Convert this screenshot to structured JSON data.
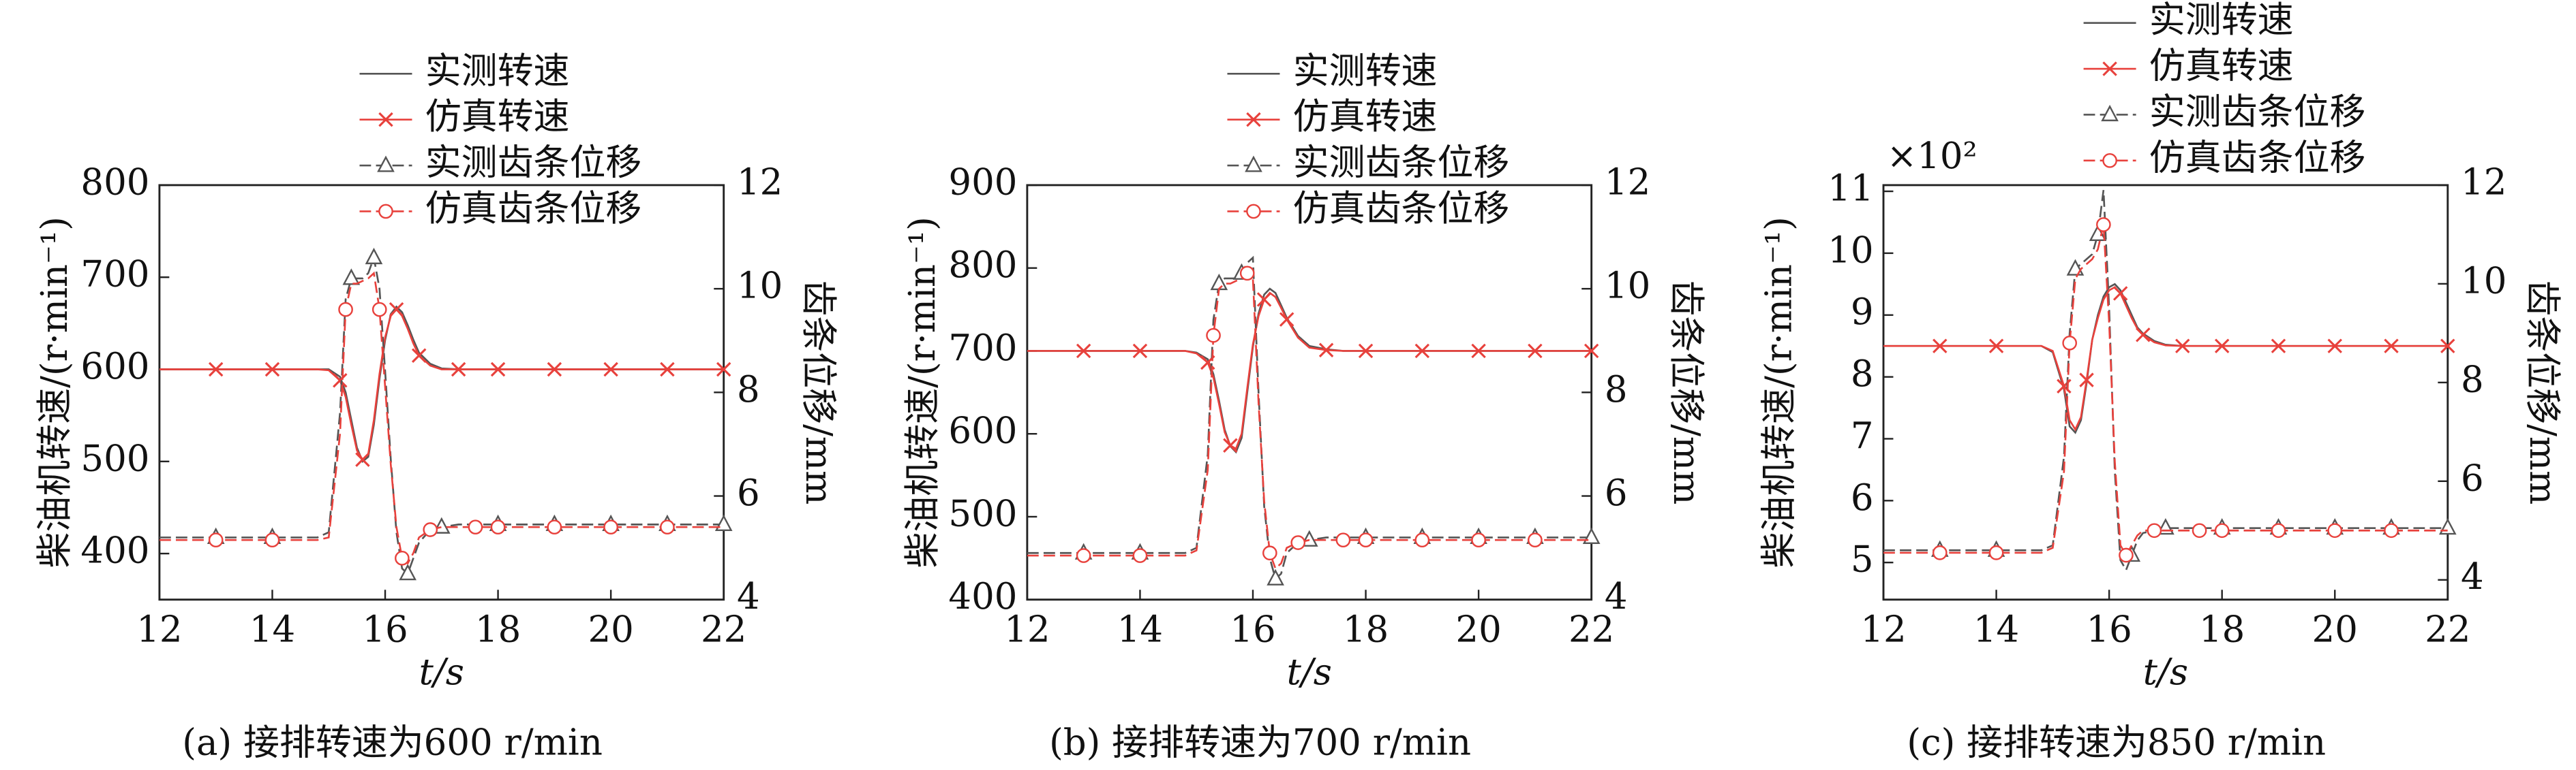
{
  "chart_data": [
    {
      "type": "line",
      "title": "(a) 接排转速为600 r/min",
      "xlabel": "t/s",
      "ylabel": "柴油机转速/(r·min⁻¹)",
      "y2label": "齿条位移/mm",
      "x": [
        12,
        13,
        14,
        14.8,
        15,
        15.2,
        15.3,
        15.4,
        15.5,
        15.6,
        15.7,
        15.8,
        15.9,
        16,
        16.1,
        16.2,
        16.3,
        16.4,
        16.5,
        16.6,
        16.8,
        17,
        17.3,
        17.6,
        18,
        19,
        20,
        21,
        22
      ],
      "xlim": [
        12,
        22
      ],
      "xticks": [
        12,
        14,
        16,
        18,
        20,
        22
      ],
      "ylim": [
        350,
        800
      ],
      "yticks": [
        400,
        500,
        600,
        700,
        800
      ],
      "y2lim": [
        4,
        12
      ],
      "y2ticks": [
        4,
        6,
        8,
        10,
        12
      ],
      "series": [
        {
          "name": "实测转速",
          "color": "#555555",
          "line_style": "solid",
          "marker": "none",
          "values": [
            600,
            600,
            600,
            600,
            600,
            592,
            575,
            545,
            515,
            500,
            505,
            540,
            590,
            632,
            660,
            668,
            662,
            648,
            632,
            618,
            606,
            601,
            600,
            600,
            600,
            600,
            600,
            600,
            600
          ]
        },
        {
          "name": "仿真转速",
          "color": "#e8413c",
          "line_style": "solid",
          "marker": "x",
          "values": [
            600,
            600,
            600,
            600,
            599,
            588,
            570,
            540,
            512,
            502,
            508,
            545,
            595,
            635,
            658,
            665,
            658,
            644,
            628,
            615,
            604,
            600,
            600,
            600,
            600,
            600,
            600,
            600,
            600
          ]
        },
        {
          "name": "实测齿条位移",
          "color": "#555555",
          "line_style": "dashed",
          "marker": "triangle",
          "axis": "y2",
          "values": [
            5.2,
            5.2,
            5.2,
            5.2,
            5.3,
            7.6,
            9.8,
            10.2,
            10.2,
            10.2,
            10.3,
            10.6,
            10.0,
            8.4,
            6.7,
            5.3,
            4.6,
            4.5,
            4.8,
            5.1,
            5.35,
            5.4,
            5.45,
            5.45,
            5.45,
            5.45,
            5.45,
            5.45,
            5.45
          ]
        },
        {
          "name": "仿真齿条位移",
          "color": "#e8413c",
          "line_style": "dashed",
          "marker": "circle",
          "axis": "y2",
          "values": [
            5.15,
            5.15,
            5.15,
            5.15,
            5.2,
            7.2,
            9.6,
            10.1,
            10.1,
            10.15,
            10.2,
            10.3,
            9.6,
            8.1,
            6.6,
            5.4,
            4.8,
            4.7,
            4.9,
            5.2,
            5.35,
            5.4,
            5.4,
            5.4,
            5.4,
            5.4,
            5.4,
            5.4,
            5.4
          ]
        }
      ]
    },
    {
      "type": "line",
      "title": "(b) 接排转速为700 r/min",
      "xlabel": "t/s",
      "ylabel": "柴油机转速/(r·min⁻¹)",
      "y2label": "齿条位移/mm",
      "x": [
        12,
        13,
        14,
        14.8,
        15,
        15.2,
        15.3,
        15.4,
        15.5,
        15.6,
        15.7,
        15.8,
        15.9,
        16,
        16.1,
        16.2,
        16.3,
        16.4,
        16.5,
        16.6,
        16.8,
        17,
        17.3,
        17.6,
        18,
        19,
        20,
        21,
        22
      ],
      "xlim": [
        12,
        22
      ],
      "xticks": [
        12,
        14,
        16,
        18,
        20,
        22
      ],
      "ylim": [
        400,
        900
      ],
      "yticks": [
        400,
        500,
        600,
        700,
        800,
        900
      ],
      "y2lim": [
        4,
        12
      ],
      "y2ticks": [
        4,
        6,
        8,
        10,
        12
      ],
      "series": [
        {
          "name": "实测转速",
          "color": "#555555",
          "line_style": "solid",
          "marker": "none",
          "values": [
            700,
            700,
            700,
            700,
            698,
            690,
            672,
            640,
            605,
            585,
            578,
            595,
            650,
            705,
            745,
            768,
            775,
            770,
            755,
            740,
            718,
            706,
            702,
            700,
            700,
            700,
            700,
            700,
            700
          ]
        },
        {
          "name": "仿真转速",
          "color": "#e8413c",
          "line_style": "solid",
          "marker": "x",
          "values": [
            700,
            700,
            700,
            700,
            697,
            686,
            668,
            636,
            602,
            586,
            582,
            600,
            655,
            708,
            742,
            762,
            770,
            765,
            752,
            738,
            716,
            704,
            701,
            700,
            700,
            700,
            700,
            700,
            700
          ]
        },
        {
          "name": "实测齿条位移",
          "color": "#555555",
          "line_style": "dashed",
          "marker": "triangle",
          "axis": "y2",
          "values": [
            4.9,
            4.9,
            4.9,
            4.9,
            5.0,
            6.8,
            9.4,
            10.1,
            10.2,
            10.2,
            10.2,
            10.3,
            10.5,
            10.6,
            8.0,
            5.8,
            4.8,
            4.4,
            4.5,
            4.9,
            5.1,
            5.15,
            5.2,
            5.2,
            5.2,
            5.2,
            5.2,
            5.2,
            5.2
          ]
        },
        {
          "name": "仿真齿条位移",
          "color": "#e8413c",
          "line_style": "dashed",
          "marker": "circle",
          "axis": "y2",
          "values": [
            4.85,
            4.85,
            4.85,
            4.85,
            4.95,
            6.5,
            9.1,
            10.0,
            10.1,
            10.1,
            10.15,
            10.2,
            10.3,
            10.2,
            7.8,
            5.9,
            4.9,
            4.6,
            4.7,
            5.0,
            5.1,
            5.15,
            5.15,
            5.15,
            5.15,
            5.15,
            5.15,
            5.15,
            5.15
          ]
        }
      ]
    },
    {
      "type": "line",
      "title": "(c) 接排转速为850 r/min",
      "xlabel": "t/s",
      "ylabel": "柴油机转速/(r·min⁻¹)",
      "y2label": "齿条位移/mm",
      "y_multiplier": "×10²",
      "x": [
        12,
        13,
        14,
        14.8,
        15,
        15.2,
        15.3,
        15.4,
        15.5,
        15.6,
        15.7,
        15.8,
        15.9,
        16,
        16.1,
        16.2,
        16.3,
        16.4,
        16.5,
        16.6,
        16.8,
        17,
        17.3,
        17.6,
        18,
        19,
        20,
        21,
        22
      ],
      "xlim": [
        12,
        22
      ],
      "xticks": [
        12,
        14,
        16,
        18,
        20,
        22
      ],
      "ylim": [
        4.4,
        11.1
      ],
      "yticks": [
        5,
        6,
        7,
        8,
        9,
        10,
        11
      ],
      "y2lim": [
        3.6,
        12
      ],
      "y2ticks": [
        4,
        6,
        8,
        10,
        12
      ],
      "series": [
        {
          "name": "实测转速",
          "color": "#555555",
          "line_style": "solid",
          "marker": "none",
          "values": [
            8.5,
            8.5,
            8.5,
            8.5,
            8.4,
            7.8,
            7.2,
            7.1,
            7.3,
            7.9,
            8.6,
            9.0,
            9.3,
            9.45,
            9.5,
            9.4,
            9.2,
            9.0,
            8.8,
            8.7,
            8.58,
            8.52,
            8.5,
            8.5,
            8.5,
            8.5,
            8.5,
            8.5,
            8.5
          ]
        },
        {
          "name": "仿真转速",
          "color": "#e8413c",
          "line_style": "solid",
          "marker": "x",
          "values": [
            8.5,
            8.5,
            8.5,
            8.5,
            8.42,
            7.85,
            7.3,
            7.15,
            7.35,
            7.95,
            8.6,
            8.95,
            9.25,
            9.4,
            9.45,
            9.35,
            9.15,
            8.95,
            8.78,
            8.68,
            8.56,
            8.51,
            8.5,
            8.5,
            8.5,
            8.5,
            8.5,
            8.5,
            8.5
          ]
        },
        {
          "name": "实测齿条位移",
          "color": "#555555",
          "line_style": "dashed",
          "marker": "triangle",
          "axis": "y2",
          "values": [
            4.6,
            4.6,
            4.6,
            4.6,
            4.7,
            6.5,
            9.0,
            10.3,
            10.4,
            10.5,
            10.6,
            11.0,
            11.9,
            9.5,
            6.2,
            4.4,
            4.2,
            4.5,
            4.8,
            4.95,
            5.0,
            5.05,
            5.05,
            5.05,
            5.05,
            5.05,
            5.05,
            5.05,
            5.05
          ]
        },
        {
          "name": "仿真齿条位移",
          "color": "#e8413c",
          "line_style": "dashed",
          "marker": "circle",
          "axis": "y2",
          "values": [
            4.55,
            4.55,
            4.55,
            4.55,
            4.65,
            6.2,
            8.8,
            10.1,
            10.3,
            10.4,
            10.5,
            10.7,
            11.2,
            9.2,
            6.4,
            4.7,
            4.5,
            4.7,
            4.9,
            5.0,
            5.0,
            5.0,
            5.0,
            5.0,
            5.0,
            5.0,
            5.0,
            5.0,
            5.0
          ]
        }
      ]
    }
  ]
}
